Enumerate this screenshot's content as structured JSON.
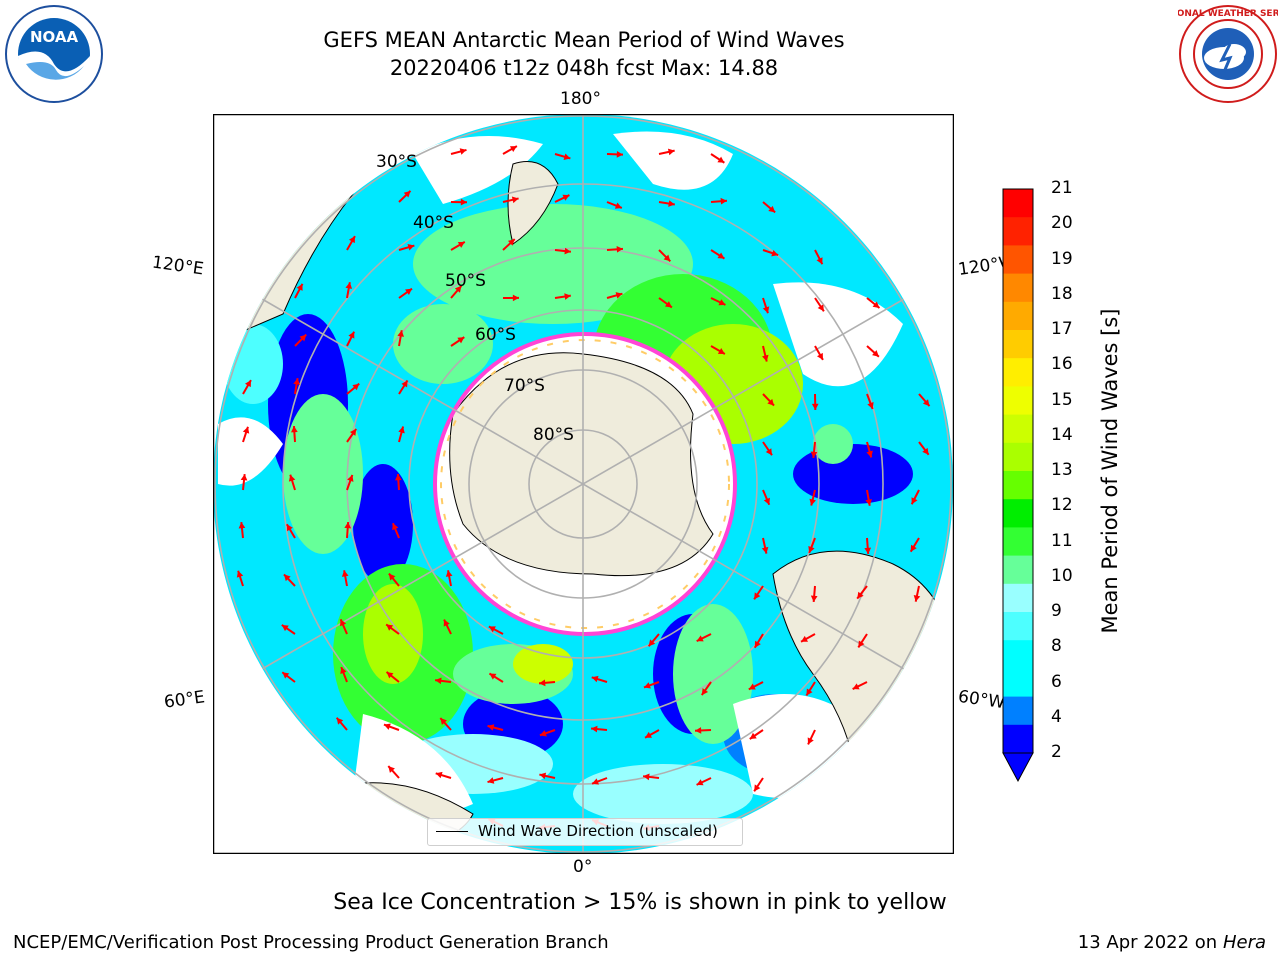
{
  "header": {
    "title": "GEFS MEAN Antarctic Mean Period of Wind Waves",
    "subtitle": "20220406 t12z 048h fcst   Max: 14.88"
  },
  "logos": {
    "left": "NOAA",
    "right": "NATIONAL WEATHER SERVICE"
  },
  "map": {
    "longitude_labels": {
      "top": "180°",
      "bottom": "0°",
      "upper_left": "120°E",
      "lower_left": "60°E",
      "upper_right": "120°W",
      "lower_right": "60°W"
    },
    "latitude_labels": [
      "30°S",
      "40°S",
      "50°S",
      "60°S",
      "70°S",
      "80°S"
    ],
    "legend": "Wind Wave Direction (unscaled)",
    "colors": {
      "land": "#efecdc",
      "ocean_base": "#00e8ff",
      "grid": "#b0b0b0",
      "arrow": "#ff0000",
      "ice_edge": "#ff44d6"
    }
  },
  "colorbar": {
    "label": "Mean Period of Wind Waves [s]",
    "ticks": [
      "21",
      "20",
      "19",
      "18",
      "17",
      "16",
      "15",
      "14",
      "13",
      "12",
      "11",
      "10",
      "9",
      "8",
      "6",
      "4",
      "2"
    ],
    "colors": [
      "#0000ff",
      "#0080ff",
      "#00ffff",
      "#00ffff",
      "#4dffff",
      "#99ffff",
      "#66ff99",
      "#33ff33",
      "#00ee00",
      "#66ff00",
      "#aaff00",
      "#ccff00",
      "#eeff00",
      "#ffee00",
      "#ffcc00",
      "#ffaa00",
      "#ff8800",
      "#ff5500",
      "#ff2200",
      "#ff0000"
    ]
  },
  "footer": {
    "note": "Sea Ice Concentration > 15% is shown in pink to yellow",
    "credit": "NCEP/EMC/Verification Post Processing Product Generation Branch",
    "date_prefix": "13 Apr 2022 on ",
    "machine": "Hera"
  }
}
